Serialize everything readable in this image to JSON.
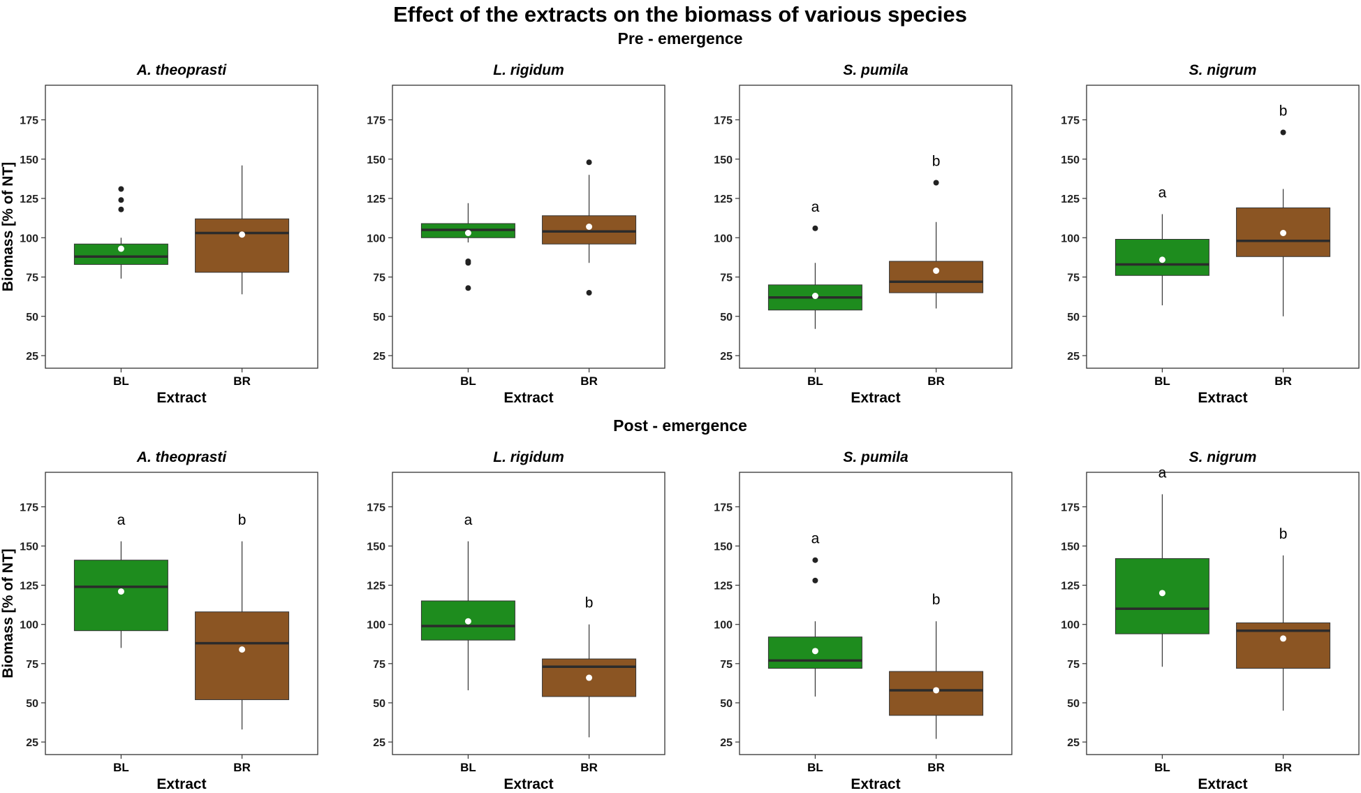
{
  "chart_data": {
    "type": "boxplot",
    "title": "Effect of the extracts on the biomass of various species",
    "ylabel": "Biomass [% of NT]",
    "xlabel": "Extract",
    "ylim": [
      17,
      197
    ],
    "yticks": [
      25,
      50,
      75,
      100,
      125,
      150,
      175
    ],
    "categories": [
      "BL",
      "BR"
    ],
    "colors": {
      "BL": "#1e8c1e",
      "BR": "#8b5523",
      "median": "#2b2b2b",
      "mean": "#ffffff",
      "outlier": "#222222"
    },
    "rows": [
      {
        "subtitle": "Pre - emergence",
        "panels": [
          {
            "title": "A. theoprasti",
            "boxes": [
              {
                "category": "BL",
                "whisker_low": 74,
                "q1": 83,
                "median": 88,
                "q3": 96,
                "whisker_high": 100,
                "mean": 93,
                "outliers": [
                  118,
                  124,
                  131
                ],
                "letter": ""
              },
              {
                "category": "BR",
                "whisker_low": 64,
                "q1": 78,
                "median": 103,
                "q3": 112,
                "whisker_high": 146,
                "mean": 102,
                "outliers": [],
                "letter": ""
              }
            ]
          },
          {
            "title": "L. rigidum",
            "boxes": [
              {
                "category": "BL",
                "whisker_low": 97,
                "q1": 100,
                "median": 105,
                "q3": 109,
                "whisker_high": 122,
                "mean": 103,
                "outliers": [
                  68,
                  84,
                  85
                ],
                "letter": ""
              },
              {
                "category": "BR",
                "whisker_low": 84,
                "q1": 96,
                "median": 104,
                "q3": 114,
                "whisker_high": 140,
                "mean": 107,
                "outliers": [
                  65,
                  148
                ],
                "letter": ""
              }
            ]
          },
          {
            "title": "S. pumila",
            "boxes": [
              {
                "category": "BL",
                "whisker_low": 42,
                "q1": 54,
                "median": 62,
                "q3": 70,
                "whisker_high": 84,
                "mean": 63,
                "outliers": [
                  106
                ],
                "letter": "a"
              },
              {
                "category": "BR",
                "whisker_low": 55,
                "q1": 65,
                "median": 72,
                "q3": 85,
                "whisker_high": 110,
                "mean": 79,
                "outliers": [
                  135
                ],
                "letter": "b"
              }
            ]
          },
          {
            "title": "S. nigrum",
            "boxes": [
              {
                "category": "BL",
                "whisker_low": 57,
                "q1": 76,
                "median": 83,
                "q3": 99,
                "whisker_high": 115,
                "mean": 86,
                "outliers": [],
                "letter": "a"
              },
              {
                "category": "BR",
                "whisker_low": 50,
                "q1": 88,
                "median": 98,
                "q3": 119,
                "whisker_high": 131,
                "mean": 103,
                "outliers": [
                  167
                ],
                "letter": "b"
              }
            ]
          }
        ]
      },
      {
        "subtitle": "Post - emergence",
        "panels": [
          {
            "title": "A. theoprasti",
            "boxes": [
              {
                "category": "BL",
                "whisker_low": 85,
                "q1": 96,
                "median": 124,
                "q3": 141,
                "whisker_high": 153,
                "mean": 121,
                "outliers": [],
                "letter": "a"
              },
              {
                "category": "BR",
                "whisker_low": 33,
                "q1": 52,
                "median": 88,
                "q3": 108,
                "whisker_high": 153,
                "mean": 84,
                "outliers": [],
                "letter": "b"
              }
            ]
          },
          {
            "title": "L. rigidum",
            "boxes": [
              {
                "category": "BL",
                "whisker_low": 58,
                "q1": 90,
                "median": 99,
                "q3": 115,
                "whisker_high": 153,
                "mean": 102,
                "outliers": [],
                "letter": "a"
              },
              {
                "category": "BR",
                "whisker_low": 28,
                "q1": 54,
                "median": 73,
                "q3": 78,
                "whisker_high": 100,
                "mean": 66,
                "outliers": [],
                "letter": "b"
              }
            ]
          },
          {
            "title": "S. pumila",
            "boxes": [
              {
                "category": "BL",
                "whisker_low": 54,
                "q1": 72,
                "median": 77,
                "q3": 92,
                "whisker_high": 102,
                "mean": 83,
                "outliers": [
                  128,
                  141
                ],
                "letter": "a"
              },
              {
                "category": "BR",
                "whisker_low": 27,
                "q1": 42,
                "median": 58,
                "q3": 70,
                "whisker_high": 102,
                "mean": 58,
                "outliers": [],
                "letter": "b"
              }
            ]
          },
          {
            "title": "S. nigrum",
            "boxes": [
              {
                "category": "BL",
                "whisker_low": 73,
                "q1": 94,
                "median": 110,
                "q3": 142,
                "whisker_high": 183,
                "mean": 120,
                "outliers": [],
                "letter": "a"
              },
              {
                "category": "BR",
                "whisker_low": 45,
                "q1": 72,
                "median": 96,
                "q3": 101,
                "whisker_high": 144,
                "mean": 91,
                "outliers": [],
                "letter": "b"
              }
            ]
          }
        ]
      }
    ]
  }
}
